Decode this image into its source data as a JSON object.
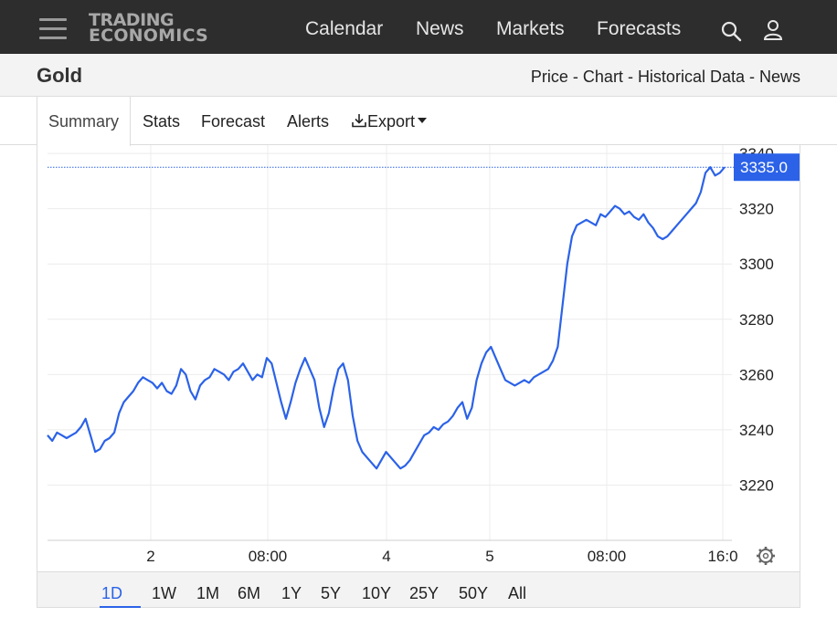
{
  "header": {
    "logo_line1": "TRADING",
    "logo_line2": "ECONOMICS",
    "nav": [
      "Calendar",
      "News",
      "Markets",
      "Forecasts"
    ]
  },
  "subheader": {
    "title": "Gold",
    "links": [
      "Price",
      "Chart",
      "Historical Data",
      "News"
    ],
    "separator": " - "
  },
  "tabs": [
    "Summary",
    "Stats",
    "Forecast",
    "Alerts",
    "Export"
  ],
  "active_tab": "Summary",
  "chart_data": {
    "type": "line",
    "current_value_label": "3335.0",
    "y_ticks": [
      3220,
      3240,
      3260,
      3280,
      3300,
      3320,
      3340
    ],
    "ylim": [
      3200,
      3343
    ],
    "x_tick_labels": [
      "2",
      "08:00",
      "4",
      "5",
      "08:00",
      "16:0"
    ],
    "series": [
      {
        "values": [
          3238,
          3236,
          3239,
          3238,
          3237,
          3238,
          3239,
          3241,
          3244,
          3238,
          3232,
          3233,
          3236,
          3237,
          3239,
          3246,
          3250,
          3252,
          3254,
          3257,
          3259,
          3258,
          3257,
          3255,
          3257,
          3254,
          3253,
          3256,
          3262,
          3260,
          3254,
          3251,
          3256,
          3258,
          3259,
          3262,
          3261,
          3260,
          3258,
          3261,
          3262,
          3264,
          3261,
          3258,
          3260,
          3259,
          3266,
          3264,
          3257,
          3250,
          3244,
          3250,
          3257,
          3262,
          3266,
          3262,
          3258,
          3248,
          3241,
          3246,
          3255,
          3262,
          3264,
          3258,
          3245,
          3236,
          3232,
          3230,
          3228,
          3226,
          3229,
          3232,
          3230,
          3228,
          3226,
          3227,
          3229,
          3232,
          3235,
          3238,
          3239,
          3241,
          3240,
          3242,
          3243,
          3245,
          3248,
          3250,
          3244,
          3248,
          3258,
          3264,
          3268,
          3270,
          3266,
          3262,
          3258,
          3257,
          3256,
          3257,
          3258,
          3257,
          3259,
          3260,
          3261,
          3262,
          3265,
          3270,
          3285,
          3300,
          3310,
          3314,
          3315,
          3316,
          3315,
          3314,
          3318,
          3317,
          3319,
          3321,
          3320,
          3318,
          3319,
          3317,
          3316,
          3318,
          3315,
          3313,
          3310,
          3309,
          3310,
          3312,
          3314,
          3316,
          3318,
          3320,
          3322,
          3326,
          3333,
          3335,
          3332,
          3333,
          3335
        ],
        "color": "#2b62e8"
      }
    ],
    "range_buttons": [
      "1D",
      "1W",
      "1M",
      "6M",
      "1Y",
      "5Y",
      "10Y",
      "25Y",
      "50Y",
      "All"
    ],
    "active_range": "1D"
  }
}
